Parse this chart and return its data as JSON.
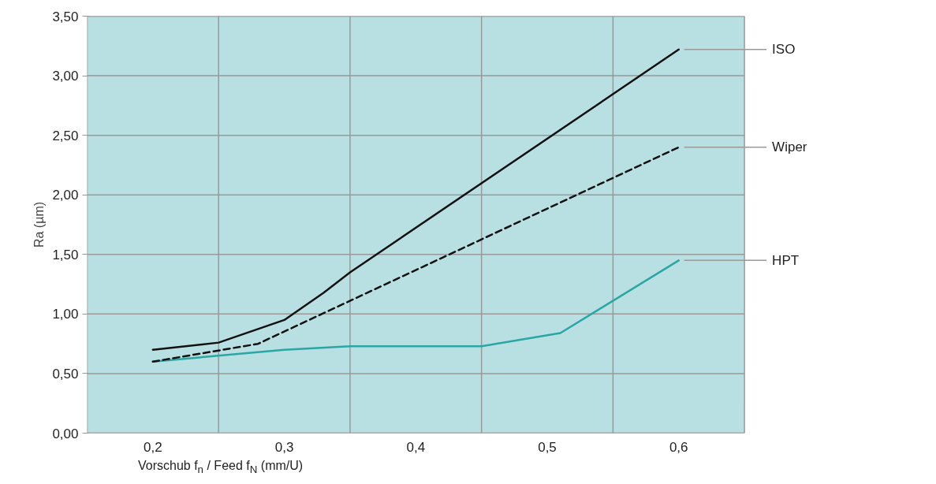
{
  "chart_data": {
    "type": "line",
    "xlabel": "Vorschub f$_{n}$ / Feed f$_{N}$  (mm/U)",
    "ylabel": "Ra (µm)",
    "xlim": [
      0.15,
      0.65
    ],
    "xticks": [
      {
        "value": 0.2,
        "label": "0,2"
      },
      {
        "value": 0.3,
        "label": "0,3"
      },
      {
        "value": 0.4,
        "label": "0,4"
      },
      {
        "value": 0.5,
        "label": "0,5"
      },
      {
        "value": 0.6,
        "label": "0,6"
      }
    ],
    "ylim": [
      0,
      3.5
    ],
    "yticks": [
      {
        "value": 0,
        "label": "0,00"
      },
      {
        "value": 0.5,
        "label": "0,50"
      },
      {
        "value": 1.0,
        "label": "1,00"
      },
      {
        "value": 1.5,
        "label": "1,50"
      },
      {
        "value": 2.0,
        "label": "2,00"
      },
      {
        "value": 2.5,
        "label": "2,50"
      },
      {
        "value": 3.0,
        "label": "3,00"
      },
      {
        "value": 3.5,
        "label": "3,50"
      }
    ],
    "grid": true,
    "series": [
      {
        "name": "ISO",
        "color": "#111111",
        "line_style": "solid",
        "x": [
          0.2,
          0.25,
          0.3,
          0.33,
          0.35,
          0.6
        ],
        "values": [
          0.7,
          0.76,
          0.95,
          1.18,
          1.35,
          3.22
        ]
      },
      {
        "name": "Wiper",
        "color": "#111111",
        "line_style": "dashed",
        "x": [
          0.2,
          0.28,
          0.6
        ],
        "values": [
          0.6,
          0.75,
          2.4
        ]
      },
      {
        "name": "HPT",
        "color": "#2aa6a4",
        "line_style": "solid",
        "x": [
          0.2,
          0.3,
          0.35,
          0.45,
          0.51,
          0.6
        ],
        "values": [
          0.6,
          0.7,
          0.73,
          0.73,
          0.84,
          1.45
        ]
      }
    ]
  }
}
